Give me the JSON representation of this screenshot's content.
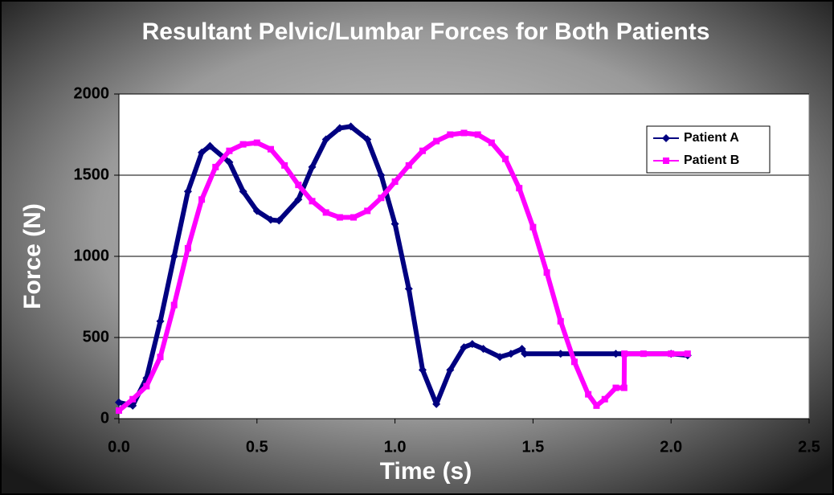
{
  "chart_data": {
    "type": "line",
    "title": "Resultant Pelvic/Lumbar Forces for Both Patients",
    "x_label": "Time (s)",
    "y_label": "Force (N)",
    "xlim": [
      0,
      2.5
    ],
    "ylim": [
      0,
      2000
    ],
    "xticks": [
      {
        "value": 0,
        "label": "0.0"
      },
      0.5,
      {
        "value": 1,
        "label": "1.0"
      },
      1.5,
      {
        "value": 2,
        "label": "2.0"
      },
      2.5
    ],
    "yticks": [
      0,
      500,
      1000,
      1500,
      2000
    ],
    "grid": true,
    "legend": "upper right",
    "series": [
      {
        "name": "Patient A",
        "color": "#000080",
        "marker": "diamond",
        "x": [
          0,
          0.05,
          0.1,
          0.15,
          0.2,
          0.25,
          0.3,
          0.33,
          0.4,
          0.45,
          0.5,
          0.55,
          0.58,
          0.65,
          0.7,
          0.75,
          0.8,
          0.84,
          0.9,
          0.95,
          1.0,
          1.05,
          1.1,
          1.15,
          1.2,
          1.25,
          1.28,
          1.32,
          1.38,
          1.42,
          1.46,
          1.47,
          1.6,
          1.8,
          2.0,
          2.06
        ],
        "values": [
          100,
          80,
          250,
          600,
          1000,
          1400,
          1640,
          1680,
          1580,
          1400,
          1280,
          1225,
          1220,
          1350,
          1550,
          1720,
          1790,
          1800,
          1720,
          1500,
          1200,
          800,
          300,
          90,
          300,
          440,
          460,
          430,
          380,
          400,
          430,
          400,
          400,
          400,
          400,
          390
        ]
      },
      {
        "name": "Patient B",
        "color": "#ff00ff",
        "marker": "square",
        "x": [
          0,
          0.05,
          0.1,
          0.15,
          0.2,
          0.25,
          0.3,
          0.35,
          0.4,
          0.45,
          0.5,
          0.55,
          0.6,
          0.65,
          0.7,
          0.75,
          0.8,
          0.85,
          0.9,
          0.95,
          1.0,
          1.05,
          1.1,
          1.15,
          1.2,
          1.25,
          1.3,
          1.35,
          1.4,
          1.45,
          1.5,
          1.55,
          1.6,
          1.65,
          1.7,
          1.73,
          1.76,
          1.8,
          1.83,
          1.831,
          1.9,
          2.0,
          2.06
        ],
        "values": [
          50,
          120,
          200,
          380,
          700,
          1050,
          1350,
          1550,
          1650,
          1690,
          1700,
          1660,
          1560,
          1440,
          1340,
          1270,
          1240,
          1240,
          1280,
          1360,
          1460,
          1560,
          1650,
          1710,
          1750,
          1760,
          1750,
          1700,
          1600,
          1420,
          1180,
          900,
          600,
          350,
          150,
          80,
          120,
          190,
          190,
          400,
          400,
          400,
          400
        ]
      }
    ]
  }
}
